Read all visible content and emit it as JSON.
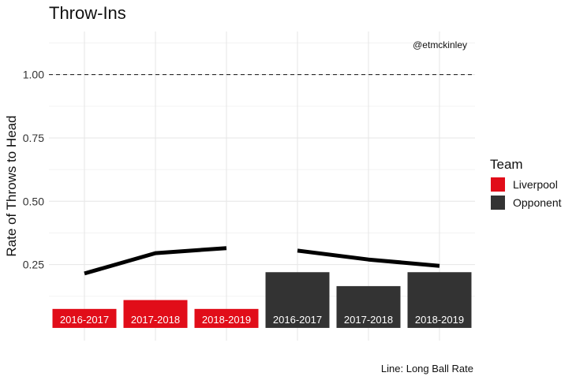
{
  "chart_data": {
    "type": "bar",
    "title": "Throw-Ins",
    "ylabel": "Rate of Throws to Head",
    "xlabel": "",
    "ylim": [
      -0.05,
      1.17
    ],
    "yticks": [
      0.25,
      0.5,
      0.75,
      1.0
    ],
    "ytick_labels": [
      "0.25",
      "0.50",
      "0.75",
      "1.00"
    ],
    "grid": true,
    "reference_line": {
      "y": 1.0,
      "style": "dashed"
    },
    "annotation": "@etmckinley",
    "caption": "Line: Long Ball Rate",
    "legend": {
      "title": "Team",
      "position": "right",
      "entries": [
        {
          "name": "Liverpool",
          "color": "#e10d19"
        },
        {
          "name": "Opponent",
          "color": "#333333"
        }
      ]
    },
    "bars": [
      {
        "label": "2016-2017",
        "team": "Liverpool",
        "value": 0.075
      },
      {
        "label": "2017-2018",
        "team": "Liverpool",
        "value": 0.11
      },
      {
        "label": "2018-2019",
        "team": "Liverpool",
        "value": 0.075
      },
      {
        "label": "2016-2017",
        "team": "Opponent",
        "value": 0.22
      },
      {
        "label": "2017-2018",
        "team": "Opponent",
        "value": 0.165
      },
      {
        "label": "2018-2019",
        "team": "Opponent",
        "value": 0.22
      }
    ],
    "lines": [
      {
        "name": "Long Ball Rate",
        "team": "Liverpool",
        "values": [
          0.215,
          0.295,
          0.315
        ]
      },
      {
        "name": "Long Ball Rate",
        "team": "Opponent",
        "values": [
          0.305,
          0.27,
          0.245
        ]
      }
    ]
  }
}
